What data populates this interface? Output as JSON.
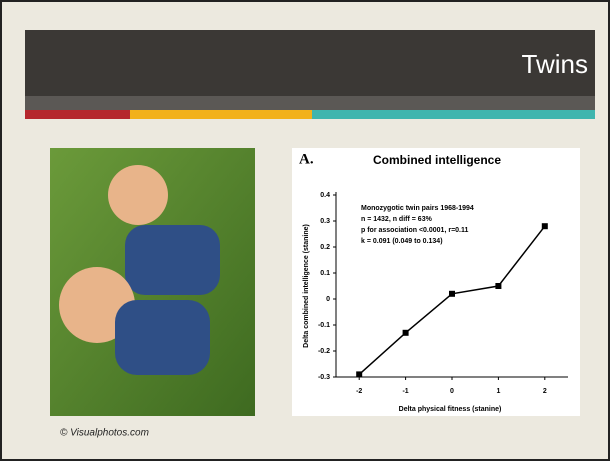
{
  "slide": {
    "title": "Twins",
    "photo_caption": "© Visualphotos.com"
  },
  "chart_data": {
    "type": "line",
    "panel_label": "A.",
    "title": "Combined intelligence",
    "annotations": [
      "Monozygotic twin pairs 1968-1994",
      "n = 1432, n diff = 63%",
      "p for association <0.0001,  r=0.11",
      "k = 0.091 (0.049 to 0.134)"
    ],
    "x_label": "Delta physical fitness (stanine)",
    "y_label": "Delta combined intelligence (stanine)",
    "x": [
      -2,
      -1,
      0,
      1,
      2
    ],
    "series": [
      {
        "name": "Combined intelligence",
        "color": "#000000",
        "values": [
          -0.29,
          -0.13,
          0.02,
          0.05,
          0.28
        ]
      }
    ],
    "xlim": [
      -2.5,
      2.5
    ],
    "xticks": [
      -2,
      -1,
      0,
      1,
      2
    ],
    "ylim": [
      -0.3,
      0.4
    ],
    "yticks": [
      -0.3,
      -0.2,
      -0.1,
      0,
      0.1,
      0.2,
      0.3,
      0.4
    ],
    "grid": false
  }
}
